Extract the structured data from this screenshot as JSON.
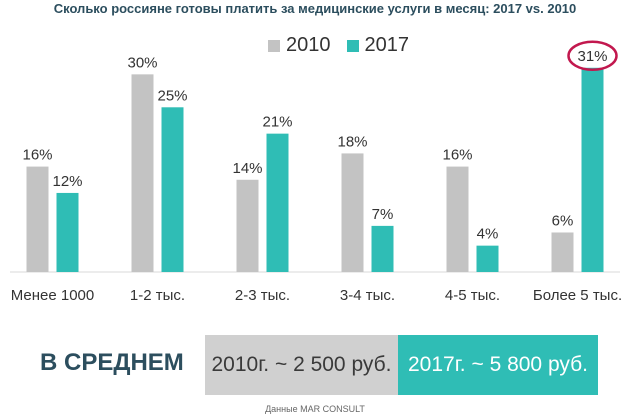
{
  "colors": {
    "s2010": "#c3c3c3",
    "s2017": "#2fbdb5",
    "highlight": "#c2184e",
    "title": "#2c4e5e"
  },
  "chart_data": {
    "type": "bar",
    "title": "Сколько россияне готовы платить за медицинские услуги в месяц: 2017 vs. 2010",
    "categories": [
      "Менее 1000",
      "1-2 тыс.",
      "2-3 тыс.",
      "3-4 тыс.",
      "4-5 тыс.",
      "Более 5 тыс."
    ],
    "series": [
      {
        "name": "2010",
        "values": [
          16,
          30,
          14,
          18,
          16,
          6
        ],
        "labels": [
          "16%",
          "30%",
          "14%",
          "18%",
          "16%",
          "6%"
        ]
      },
      {
        "name": "2017",
        "values": [
          12,
          25,
          21,
          7,
          4,
          31
        ],
        "labels": [
          "12%",
          "25%",
          "21%",
          "7%",
          "4%",
          "31%"
        ]
      }
    ],
    "ylim": [
      0,
      34
    ],
    "legend": "top-center",
    "highlighted": {
      "series": "2017",
      "category": "Более 5 тыс."
    }
  },
  "summary": {
    "label": "В СРЕДНЕМ",
    "avg_2010": "2010г. ~ 2 500 руб.",
    "avg_2017": "2017г. ~ 5 800 руб."
  },
  "source": "Данные MAR CONSULT"
}
